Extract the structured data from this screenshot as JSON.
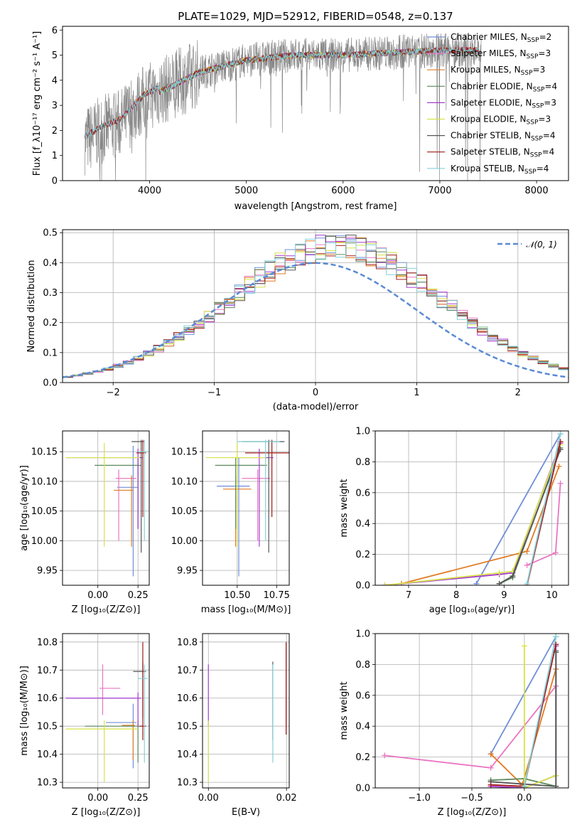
{
  "colors": {
    "chab_miles": "#6f8fd8",
    "salp_miles": "#ea75c2",
    "krou_miles": "#e07b24",
    "chab_elodie": "#5c8a5c",
    "salp_elodie": "#a83bd0",
    "krou_elodie": "#d6e24a",
    "chab_stelib": "#555555",
    "salp_stelib": "#a11a1a",
    "krou_stelib": "#84d0d8",
    "data": "#888888",
    "gauss": "#5a8ad4",
    "grid": "#b0b0b0"
  },
  "chart_data": [
    {
      "id": "spectrum",
      "type": "line",
      "title": "PLATE=1029, MJD=52912, FIBERID=0548, z=0.137",
      "xlabel": "wavelength [Angstrom, rest frame]",
      "ylabel": "Flux [f_λ10⁻¹⁷ erg cm⁻² s⁻¹ A⁻¹]",
      "xlim": [
        3100,
        8330
      ],
      "ylim": [
        0,
        6.15
      ],
      "xticks": [
        "4000",
        "5000",
        "6000",
        "7000",
        "8000"
      ],
      "yticks": [
        "0",
        "1",
        "2",
        "3",
        "4",
        "5",
        "6"
      ],
      "legend_position": "top-right",
      "legend": [
        {
          "pre": "Chabrier MILES, N",
          "sub": "SSP",
          "post": "=2"
        },
        {
          "pre": "Salpeter MILES, N",
          "sub": "SSP",
          "post": "=3"
        },
        {
          "pre": "Kroupa MILES, N",
          "sub": "SSP",
          "post": "=3"
        },
        {
          "pre": "Chabrier ELODIE, N",
          "sub": "SSP",
          "post": "=4"
        },
        {
          "pre": "Salpeter ELODIE, N",
          "sub": "SSP",
          "post": "=3"
        },
        {
          "pre": "Kroupa ELODIE, N",
          "sub": "SSP",
          "post": "=3"
        },
        {
          "pre": "Chabrier STELIB, N",
          "sub": "SSP",
          "post": "=4"
        },
        {
          "pre": "Salpeter STELIB, N",
          "sub": "SSP",
          "post": "=4"
        },
        {
          "pre": "Kroupa STELIB, N",
          "sub": "SSP",
          "post": "=4"
        }
      ],
      "data_xrange": [
        3330,
        7430
      ],
      "continuum": [
        [
          3330,
          1.6
        ],
        [
          3500,
          2.0
        ],
        [
          3700,
          2.3
        ],
        [
          3950,
          3.3
        ],
        [
          4200,
          3.7
        ],
        [
          4500,
          4.3
        ],
        [
          5000,
          4.8
        ],
        [
          5500,
          5.0
        ],
        [
          6000,
          5.0
        ],
        [
          6500,
          5.1
        ],
        [
          7000,
          5.2
        ],
        [
          7430,
          5.2
        ]
      ],
      "model_xranges": {
        "miles": [
          3540,
          7400
        ],
        "elodie": [
          3900,
          6800
        ],
        "stelib": [
          3330,
          7400
        ]
      }
    },
    {
      "id": "residuals",
      "type": "histogram",
      "xlabel": "(data-model)/error",
      "ylabel": "Normed distribution",
      "xlim": [
        -2.5,
        2.5
      ],
      "ylim": [
        0,
        0.51
      ],
      "xticks": [
        "−2",
        "−1",
        "0",
        "1",
        "2"
      ],
      "yticks": [
        "0.0",
        "0.1",
        "0.2",
        "0.3",
        "0.4",
        "0.5"
      ],
      "legend": "𝒩(0, 1)",
      "legend_position": "top-right",
      "bin_width": 0.1,
      "center_shift": 0.2,
      "sigma": 1.05,
      "peak": 0.455
    },
    {
      "id": "age_vs_Z",
      "type": "errorbar",
      "xlabel": "Z [log₁₀(Z/Z⊙)]",
      "ylabel": "age  [log₁₀(age/yr)]",
      "xlim": [
        -0.22,
        0.32
      ],
      "ylim": [
        9.925,
        10.185
      ],
      "xticks": [
        "0.00",
        "0.25"
      ],
      "yticks": [
        "9.95",
        "10.00",
        "10.05",
        "10.10",
        "10.15"
      ],
      "points": [
        {
          "c": "chab_miles",
          "x": 0.22,
          "y": 10.09,
          "xe": [
            0.12,
            0.25
          ],
          "ye": [
            9.94,
            10.16
          ]
        },
        {
          "c": "salp_miles",
          "x": 0.13,
          "y": 10.105,
          "xe": [
            0.11,
            0.24
          ],
          "ye": [
            10.0,
            10.12
          ]
        },
        {
          "c": "krou_miles",
          "x": 0.21,
          "y": 10.085,
          "xe": [
            0.1,
            0.22
          ],
          "ye": [
            9.99,
            10.11
          ]
        },
        {
          "c": "chab_elodie",
          "x": 0.25,
          "y": 10.127,
          "xe": [
            -0.02,
            0.27
          ],
          "ye": [
            10.02,
            10.14
          ]
        },
        {
          "c": "salp_elodie",
          "x": 0.25,
          "y": 10.14,
          "xe": [
            -0.2,
            0.28
          ],
          "ye": [
            10.02,
            10.155
          ]
        },
        {
          "c": "krou_elodie",
          "x": 0.04,
          "y": 10.14,
          "xe": [
            -0.2,
            0.26
          ],
          "ye": [
            9.99,
            10.165
          ]
        },
        {
          "c": "chab_stelib",
          "x": 0.27,
          "y": 10.167,
          "xe": [
            0.21,
            0.29
          ],
          "ye": [
            9.98,
            10.17
          ]
        },
        {
          "c": "salp_stelib",
          "x": 0.28,
          "y": 10.148,
          "xe": [
            0.24,
            0.3
          ],
          "ye": [
            10.04,
            10.17
          ]
        },
        {
          "c": "krou_stelib",
          "x": 0.29,
          "y": 10.15,
          "xe": [
            0.25,
            0.31
          ],
          "ye": [
            10.0,
            10.17
          ]
        }
      ]
    },
    {
      "id": "age_vs_mass",
      "type": "errorbar",
      "xlabel": "mass [log₁₀(M/M⊙)]",
      "xlim": [
        10.28,
        10.83
      ],
      "ylim": [
        9.925,
        10.185
      ],
      "xticks": [
        "10.50",
        "10.75"
      ],
      "yticks": [
        "9.95",
        "10.00",
        "10.05",
        "10.10",
        "10.15"
      ],
      "points": [
        {
          "c": "chab_miles",
          "x": 10.51,
          "y": 10.092,
          "xe": [
            10.37,
            10.58
          ],
          "ye": [
            9.94,
            10.14
          ]
        },
        {
          "c": "salp_miles",
          "x": 10.63,
          "y": 10.105,
          "xe": [
            10.53,
            10.71
          ],
          "ye": [
            10.0,
            10.12
          ]
        },
        {
          "c": "krou_miles",
          "x": 10.49,
          "y": 10.087,
          "xe": [
            10.41,
            10.59
          ],
          "ye": [
            9.99,
            10.11
          ]
        },
        {
          "c": "chab_elodie",
          "x": 10.49,
          "y": 10.127,
          "xe": [
            10.36,
            10.69
          ],
          "ye": [
            10.02,
            10.14
          ]
        },
        {
          "c": "salp_elodie",
          "x": 10.64,
          "y": 10.14,
          "xe": [
            10.5,
            10.73
          ],
          "ye": [
            9.99,
            10.155
          ]
        },
        {
          "c": "krou_elodie",
          "x": 10.5,
          "y": 10.14,
          "xe": [
            10.3,
            10.68
          ],
          "ye": [
            9.99,
            10.165
          ]
        },
        {
          "c": "chab_stelib",
          "x": 10.7,
          "y": 10.167,
          "xe": [
            10.53,
            10.8
          ],
          "ye": [
            9.98,
            10.17
          ]
        },
        {
          "c": "salp_stelib",
          "x": 10.72,
          "y": 10.148,
          "xe": [
            10.55,
            10.83
          ],
          "ye": [
            10.04,
            10.17
          ]
        },
        {
          "c": "krou_stelib",
          "x": 10.68,
          "y": 10.167,
          "xe": [
            10.5,
            10.77
          ],
          "ye": [
            10.0,
            10.17
          ]
        }
      ]
    },
    {
      "id": "mass_weight_vs_age",
      "type": "line",
      "xlabel": "age  [log₁₀(age/yr)]",
      "ylabel": "mass weight",
      "xlim": [
        6.3,
        10.35
      ],
      "ylim": [
        0,
        1
      ],
      "xticks": [
        "7",
        "8",
        "9",
        "10"
      ],
      "yticks": [
        "0.0",
        "0.2",
        "0.4",
        "0.6",
        "0.8",
        "1.0"
      ],
      "series": [
        {
          "c": "chab_miles",
          "x": [
            8.42,
            10.18
          ],
          "y": [
            0.01,
            0.98
          ]
        },
        {
          "c": "salp_miles",
          "x": [
            9.48,
            10.08,
            10.18
          ],
          "y": [
            0.13,
            0.21,
            0.66
          ]
        },
        {
          "c": "krou_miles",
          "x": [
            6.85,
            9.48,
            10.15
          ],
          "y": [
            0.01,
            0.22,
            0.77
          ]
        },
        {
          "c": "chab_elodie",
          "x": [
            8.9,
            9.18,
            10.18
          ],
          "y": [
            0.01,
            0.05,
            0.89
          ]
        },
        {
          "c": "salp_elodie",
          "x": [
            6.5,
            8.9,
            9.18,
            10.18
          ],
          "y": [
            0.0,
            0.07,
            0.08,
            0.92
          ]
        },
        {
          "c": "krou_elodie",
          "x": [
            6.5,
            8.9,
            9.18,
            10.18
          ],
          "y": [
            0.0,
            0.08,
            0.09,
            0.91
          ]
        },
        {
          "c": "chab_stelib",
          "x": [
            8.9,
            9.18,
            10.18
          ],
          "y": [
            0.01,
            0.06,
            0.88
          ]
        },
        {
          "c": "salp_stelib",
          "x": [
            9.48,
            10.18
          ],
          "y": [
            0.0,
            0.93
          ]
        },
        {
          "c": "krou_stelib",
          "x": [
            9.48,
            10.18
          ],
          "y": [
            0.01,
            0.98
          ]
        }
      ]
    },
    {
      "id": "mass_vs_Z",
      "type": "errorbar",
      "xlabel": "Z [log₁₀(Z/Z⊙)]",
      "ylabel": "mass [log₁₀(M/M⊙)]",
      "xlim": [
        -0.22,
        0.32
      ],
      "ylim": [
        10.28,
        10.83
      ],
      "xticks": [
        "0.00",
        "0.25"
      ],
      "yticks": [
        "10.3",
        "10.4",
        "10.5",
        "10.6",
        "10.7",
        "10.8"
      ],
      "points": [
        {
          "c": "chab_miles",
          "x": 0.22,
          "y": 10.513,
          "xe": [
            0.05,
            0.24
          ],
          "ye": [
            10.35,
            10.58
          ]
        },
        {
          "c": "salp_miles",
          "x": 0.03,
          "y": 10.635,
          "xe": [
            0.01,
            0.14
          ],
          "ye": [
            10.54,
            10.72
          ]
        },
        {
          "c": "krou_miles",
          "x": 0.22,
          "y": 10.503,
          "xe": [
            0.15,
            0.23
          ],
          "ye": [
            10.38,
            10.52
          ]
        },
        {
          "c": "chab_elodie",
          "x": 0.25,
          "y": 10.5,
          "xe": [
            -0.08,
            0.27
          ],
          "ye": [
            10.37,
            10.52
          ]
        },
        {
          "c": "salp_elodie",
          "x": 0.25,
          "y": 10.6,
          "xe": [
            -0.2,
            0.27
          ],
          "ye": [
            10.5,
            10.62
          ]
        },
        {
          "c": "krou_elodie",
          "x": 0.04,
          "y": 10.49,
          "xe": [
            -0.2,
            0.25
          ],
          "ye": [
            10.3,
            10.52
          ]
        },
        {
          "c": "chab_stelib",
          "x": 0.28,
          "y": 10.695,
          "xe": [
            0.22,
            0.3
          ],
          "ye": [
            10.53,
            10.73
          ]
        },
        {
          "c": "salp_stelib",
          "x": 0.28,
          "y": 10.5,
          "xe": [
            0.26,
            0.3
          ],
          "ye": [
            10.45,
            10.8
          ]
        },
        {
          "c": "krou_stelib",
          "x": 0.29,
          "y": 10.67,
          "xe": [
            0.25,
            0.31
          ],
          "ye": [
            10.37,
            10.72
          ]
        }
      ]
    },
    {
      "id": "mass_vs_ebv",
      "type": "errorbar",
      "xlabel": "E(B-V)",
      "xlim": [
        -0.0015,
        0.0207
      ],
      "ylim": [
        10.28,
        10.83
      ],
      "xticks": [
        "0.00",
        "0.02"
      ],
      "yticks": [
        "10.3",
        "10.4",
        "10.5",
        "10.6",
        "10.7",
        "10.8"
      ],
      "points": [
        {
          "c": "salp_elodie",
          "x": 0.0,
          "y": 10.6,
          "ye": [
            10.5,
            10.72
          ]
        },
        {
          "c": "krou_elodie",
          "x": 0.0,
          "y": 10.49,
          "ye": [
            10.3,
            10.52
          ]
        },
        {
          "c": "chab_stelib",
          "x": 0.0165,
          "y": 10.695,
          "ye": [
            10.45,
            10.73
          ]
        },
        {
          "c": "krou_stelib",
          "x": 0.0165,
          "y": 10.67,
          "ye": [
            10.37,
            10.72
          ]
        },
        {
          "c": "salp_stelib",
          "x": 0.0199,
          "y": 10.5,
          "ye": [
            10.47,
            10.8
          ]
        }
      ]
    },
    {
      "id": "mass_weight_vs_Z",
      "type": "line",
      "xlabel": "Z [log₁₀(Z/Z⊙)]",
      "ylabel": "mass weight",
      "xlim": [
        -1.42,
        0.42
      ],
      "ylim": [
        0,
        1
      ],
      "xticks": [
        "−1.0",
        "−0.5",
        "0.0"
      ],
      "yticks": [
        "0.0",
        "0.2",
        "0.4",
        "0.6",
        "0.8",
        "1.0"
      ],
      "series": [
        {
          "c": "chab_miles",
          "x": [
            -0.32,
            0.3
          ],
          "y": [
            0.22,
            0.98
          ]
        },
        {
          "c": "salp_miles",
          "x": [
            -1.33,
            -0.32,
            0.3
          ],
          "y": [
            0.21,
            0.13,
            0.66
          ]
        },
        {
          "c": "krou_miles",
          "x": [
            -0.32,
            -0.02,
            0.3
          ],
          "y": [
            0.22,
            0.02,
            0.77
          ]
        },
        {
          "c": "chab_elodie",
          "x": [
            -0.32,
            0.0,
            0.3,
            0.3
          ],
          "y": [
            0.05,
            0.06,
            0.01,
            0.89
          ]
        },
        {
          "c": "salp_elodie",
          "x": [
            -0.32,
            0.0,
            0.3,
            0.3
          ],
          "y": [
            0.01,
            0.0,
            0.08,
            0.92
          ]
        },
        {
          "c": "krou_elodie",
          "x": [
            0.0,
            0.0,
            0.3
          ],
          "y": [
            0.92,
            0.0,
            0.08
          ]
        },
        {
          "c": "chab_stelib",
          "x": [
            -0.32,
            0.3,
            0.3
          ],
          "y": [
            0.04,
            0.01,
            0.88
          ]
        },
        {
          "c": "salp_stelib",
          "x": [
            -0.32,
            0.0,
            0.3
          ],
          "y": [
            0.02,
            0.01,
            0.93
          ]
        },
        {
          "c": "krou_stelib",
          "x": [
            0.0,
            0.3
          ],
          "y": [
            0.01,
            0.98
          ]
        }
      ]
    }
  ]
}
